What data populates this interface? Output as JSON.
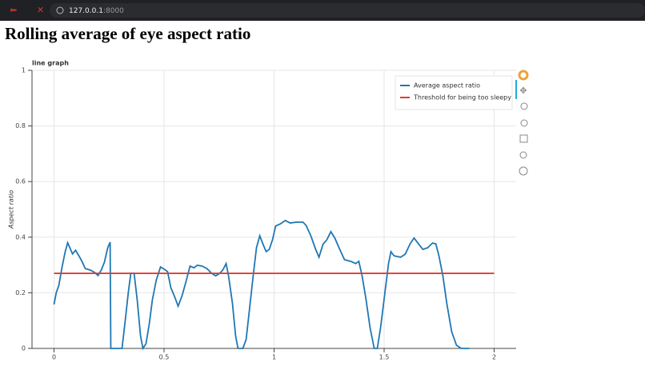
{
  "browser": {
    "host": "127.0.0.1",
    "port": ":8000"
  },
  "heading": "Rolling average of eye aspect ratio",
  "chart_data": {
    "type": "line",
    "title": "line graph",
    "y_label": "Aspect ratio",
    "xlim": [
      -0.1,
      2.1
    ],
    "ylim": [
      0,
      1
    ],
    "xticks": [
      0,
      0.5,
      1,
      1.5,
      2
    ],
    "yticks": [
      0,
      0.2,
      0.4,
      0.6,
      0.8,
      1
    ],
    "grid": true,
    "legend": "top-right",
    "series": [
      {
        "name": "Average aspect ratio",
        "color": "#1f77b4",
        "x": [
          0,
          0.01,
          0.022,
          0.036,
          0.05,
          0.062,
          0.073,
          0.084,
          0.098,
          0.113,
          0.127,
          0.142,
          0.164,
          0.185,
          0.2,
          0.215,
          0.229,
          0.244,
          0.255,
          0.258,
          0.309,
          0.324,
          0.338,
          0.349,
          0.364,
          0.378,
          0.393,
          0.404,
          0.418,
          0.433,
          0.447,
          0.465,
          0.484,
          0.502,
          0.516,
          0.531,
          0.549,
          0.564,
          0.582,
          0.6,
          0.618,
          0.636,
          0.651,
          0.673,
          0.695,
          0.716,
          0.735,
          0.753,
          0.767,
          0.782,
          0.793,
          0.811,
          0.825,
          0.836,
          0.858,
          0.873,
          0.887,
          0.905,
          0.92,
          0.935,
          0.949,
          0.964,
          0.978,
          0.993,
          1.007,
          1.029,
          1.051,
          1.073,
          1.102,
          1.131,
          1.145,
          1.167,
          1.189,
          1.204,
          1.222,
          1.24,
          1.258,
          1.276,
          1.295,
          1.32,
          1.349,
          1.371,
          1.385,
          1.4,
          1.418,
          1.436,
          1.455,
          1.469,
          1.484,
          1.502,
          1.52,
          1.531,
          1.545,
          1.575,
          1.596,
          1.618,
          1.636,
          1.658,
          1.676,
          1.698,
          1.72,
          1.735,
          1.749,
          1.767,
          1.785,
          1.807,
          1.829,
          1.851,
          1.887
        ],
        "values": [
          0.158,
          0.2,
          0.227,
          0.29,
          0.345,
          0.38,
          0.36,
          0.34,
          0.353,
          0.333,
          0.313,
          0.287,
          0.282,
          0.273,
          0.262,
          0.282,
          0.31,
          0.362,
          0.382,
          0,
          0,
          0.103,
          0.204,
          0.27,
          0.27,
          0.175,
          0.046,
          0,
          0.017,
          0.089,
          0.175,
          0.247,
          0.293,
          0.284,
          0.276,
          0.218,
          0.184,
          0.152,
          0.19,
          0.241,
          0.296,
          0.29,
          0.299,
          0.296,
          0.287,
          0.27,
          0.261,
          0.27,
          0.282,
          0.305,
          0.261,
          0.161,
          0.046,
          0,
          0,
          0.032,
          0.132,
          0.261,
          0.362,
          0.405,
          0.376,
          0.348,
          0.356,
          0.391,
          0.44,
          0.448,
          0.46,
          0.451,
          0.454,
          0.454,
          0.443,
          0.405,
          0.356,
          0.328,
          0.374,
          0.391,
          0.42,
          0.397,
          0.362,
          0.319,
          0.313,
          0.305,
          0.313,
          0.261,
          0.175,
          0.075,
          0,
          0,
          0.075,
          0.19,
          0.305,
          0.348,
          0.333,
          0.328,
          0.339,
          0.376,
          0.397,
          0.374,
          0.356,
          0.362,
          0.379,
          0.376,
          0.333,
          0.261,
          0.161,
          0.06,
          0.011,
          0,
          0
        ]
      },
      {
        "name": "Threshold for being too sleepy",
        "color": "#e03c31",
        "x": [
          0,
          2
        ],
        "values": [
          0.27,
          0.27
        ]
      }
    ]
  }
}
